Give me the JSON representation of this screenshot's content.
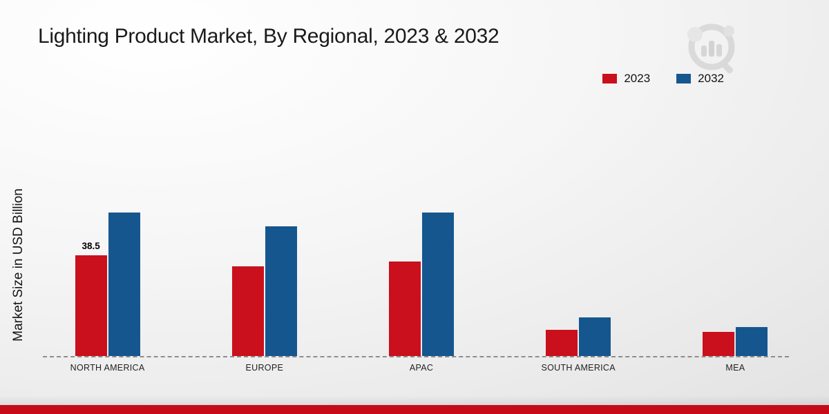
{
  "title": "Lighting Product Market, By Regional, 2023 & 2032",
  "legend": {
    "items": [
      {
        "label": "2023"
      },
      {
        "label": "2032"
      }
    ]
  },
  "chart_data": {
    "type": "bar",
    "title": "Lighting Product Market, By Regional, 2023 & 2032",
    "categories": [
      "NORTH AMERICA",
      "EUROPE",
      "APAC",
      "SOUTH AMERICA",
      "MEA"
    ],
    "series": [
      {
        "name": "2023",
        "color": "#c9101c",
        "values": [
          38.5,
          34.4,
          36.2,
          10.1,
          9.3
        ]
      },
      {
        "name": "2032",
        "color": "#16568f",
        "values": [
          55.0,
          49.6,
          55.0,
          14.8,
          11.1
        ]
      }
    ],
    "xlabel": "",
    "ylabel": "Market Size in USD Billion",
    "ylim": [
      0,
      60
    ],
    "grid": false,
    "legend_position": "top-right",
    "baseline_style": "dashed",
    "bar_labels": [
      {
        "category_index": 0,
        "series_index": 0,
        "text": "38.5"
      }
    ]
  },
  "colors": {
    "footer_bar": "#c50b19",
    "baseline": "#8d8d8d"
  },
  "watermark": {
    "name": "market-research-future-logo"
  }
}
